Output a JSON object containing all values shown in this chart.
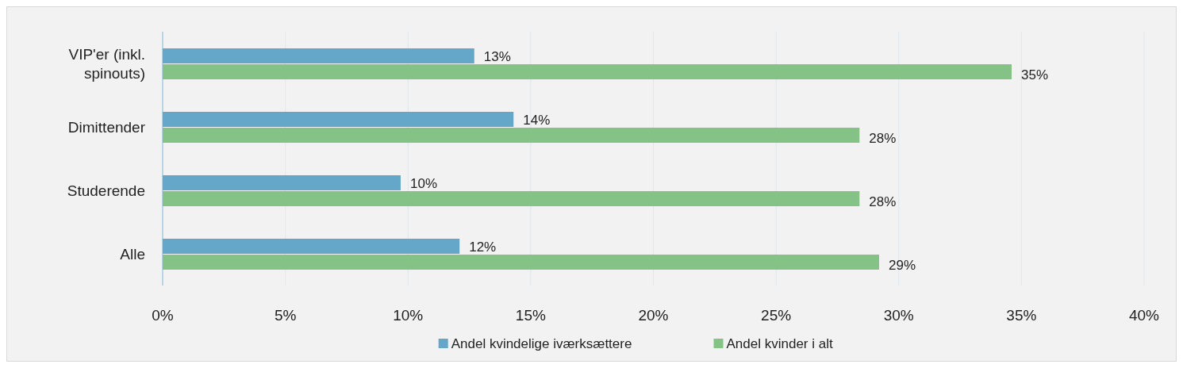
{
  "chart_data": {
    "type": "bar",
    "orientation": "horizontal",
    "categories": [
      "VIP'er (inkl. spinouts)",
      "Dimittender",
      "Studerende",
      "Alle"
    ],
    "series": [
      {
        "name": "Andel kvindelige iværksættere",
        "color": "#65a7c9",
        "values": [
          12.7,
          14.3,
          9.7,
          12.1
        ],
        "value_labels": [
          "13%",
          "14%",
          "10%",
          "12%"
        ]
      },
      {
        "name": "Andel kvinder i alt",
        "color": "#85c285",
        "values": [
          34.6,
          28.4,
          28.4,
          29.2
        ],
        "value_labels": [
          "35%",
          "28%",
          "28%",
          "29%"
        ]
      }
    ],
    "xlim": [
      0,
      40
    ],
    "xticks": [
      {
        "value": 0,
        "label": "0%"
      },
      {
        "value": 5,
        "label": "5%"
      },
      {
        "value": 10,
        "label": "10%"
      },
      {
        "value": 15,
        "label": "15%"
      },
      {
        "value": 20,
        "label": "20%"
      },
      {
        "value": 25,
        "label": "25%"
      },
      {
        "value": 30,
        "label": "30%"
      },
      {
        "value": 35,
        "label": "35%"
      },
      {
        "value": 40,
        "label": "40%"
      }
    ],
    "grid": "x",
    "legend": "bottom"
  }
}
